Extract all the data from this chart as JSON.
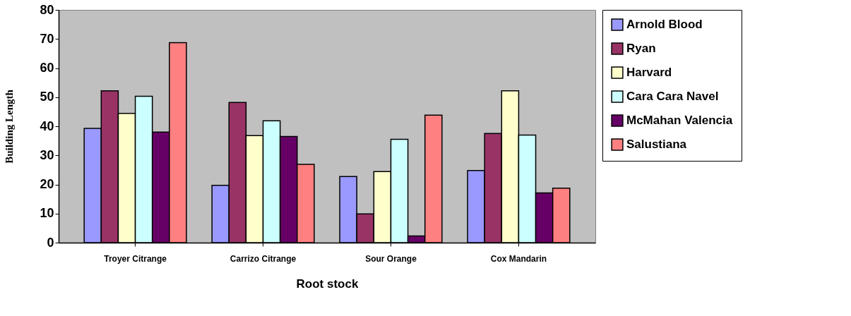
{
  "chart_data": {
    "type": "bar",
    "xlabel": "Root stock",
    "ylabel": "Building Length",
    "categories": [
      "Troyer Citrange",
      "Carrizo Citrange",
      "Sour Orange",
      "Cox Mandarin"
    ],
    "series": [
      {
        "name": "Arnold Blood",
        "color": "#9999ff",
        "values": [
          39.3,
          19.7,
          22.7,
          24.8
        ]
      },
      {
        "name": "Ryan",
        "color": "#993366",
        "values": [
          52.2,
          48.2,
          9.9,
          37.5
        ]
      },
      {
        "name": "Harvard",
        "color": "#ffffcc",
        "values": [
          44.4,
          36.8,
          24.4,
          52.2
        ]
      },
      {
        "name": "Cara Cara Navel",
        "color": "#ccffff",
        "values": [
          50.3,
          41.9,
          35.5,
          37.0
        ]
      },
      {
        "name": "McMahan Valencia",
        "color": "#660066",
        "values": [
          38.0,
          36.5,
          2.3,
          17.1
        ]
      },
      {
        "name": "Salustiana",
        "color": "#ff8080",
        "values": [
          68.7,
          26.9,
          43.8,
          18.7
        ]
      }
    ],
    "ylim": [
      0,
      80
    ],
    "yticks": [
      0,
      10,
      20,
      30,
      40,
      50,
      60,
      70,
      80
    ],
    "grid": false,
    "legend": "right"
  }
}
